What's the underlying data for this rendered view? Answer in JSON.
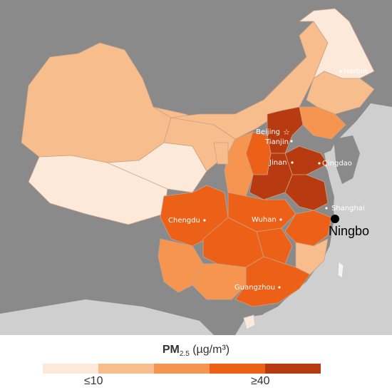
{
  "map": {
    "colors": {
      "background": "#cfcfcf",
      "neighbors": "#8a8a8a",
      "sea": "#cfcfcf",
      "border": "#b98d6c"
    },
    "cities": [
      {
        "name": "Harbin"
      },
      {
        "name": "Beijing"
      },
      {
        "name": "Tianjin"
      },
      {
        "name": "Jinan"
      },
      {
        "name": "Qingdao"
      },
      {
        "name": "Shanghai"
      },
      {
        "name": "Chengdu"
      },
      {
        "name": "Wuhan"
      },
      {
        "name": "Guangzhou"
      }
    ],
    "marker": {
      "name": "Ningbo"
    }
  },
  "legend": {
    "title_main": "PM",
    "title_sub": "2.5",
    "title_unit": " (µg/m³)",
    "low_label": "≤10",
    "high_label": "≥40",
    "colors": [
      "#fde9d9",
      "#f8bd8d",
      "#f6954f",
      "#ed6017",
      "#b83a10"
    ]
  }
}
